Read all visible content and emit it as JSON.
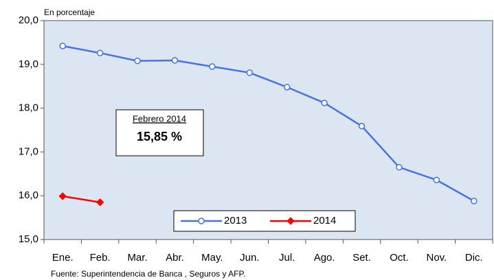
{
  "chart_data": {
    "type": "line",
    "y_label": "En porcentaje",
    "source": "Fuente: Superintendencia de Banca , Seguros y AFP.",
    "annotation": {
      "title": "Febrero 2014",
      "value": "15,85 %"
    },
    "categories": [
      "Ene.",
      "Feb.",
      "Mar.",
      "Abr.",
      "May.",
      "Jun.",
      "Jul.",
      "Ago.",
      "Set.",
      "Oct.",
      "Nov.",
      "Dic."
    ],
    "series": [
      {
        "name": "2013",
        "color": "#4472e8",
        "marker_fill": "#ffffff",
        "values": [
          19.42,
          19.26,
          19.08,
          19.09,
          18.95,
          18.81,
          18.48,
          18.12,
          17.59,
          16.65,
          16.36,
          15.88
        ]
      },
      {
        "name": "2014",
        "color": "#ff0000",
        "marker_fill": "#ff0000",
        "values": [
          15.99,
          15.85,
          null,
          null,
          null,
          null,
          null,
          null,
          null,
          null,
          null,
          null
        ]
      }
    ],
    "ylim": [
      15,
      20
    ],
    "yticks": [
      {
        "value": 15,
        "label": "15,0"
      },
      {
        "value": 16,
        "label": "16,0"
      },
      {
        "value": 17,
        "label": "17,0"
      },
      {
        "value": 18,
        "label": "18,0"
      },
      {
        "value": 19,
        "label": "19,0"
      },
      {
        "value": 20,
        "label": "20,0"
      }
    ],
    "legend": "bottom"
  }
}
